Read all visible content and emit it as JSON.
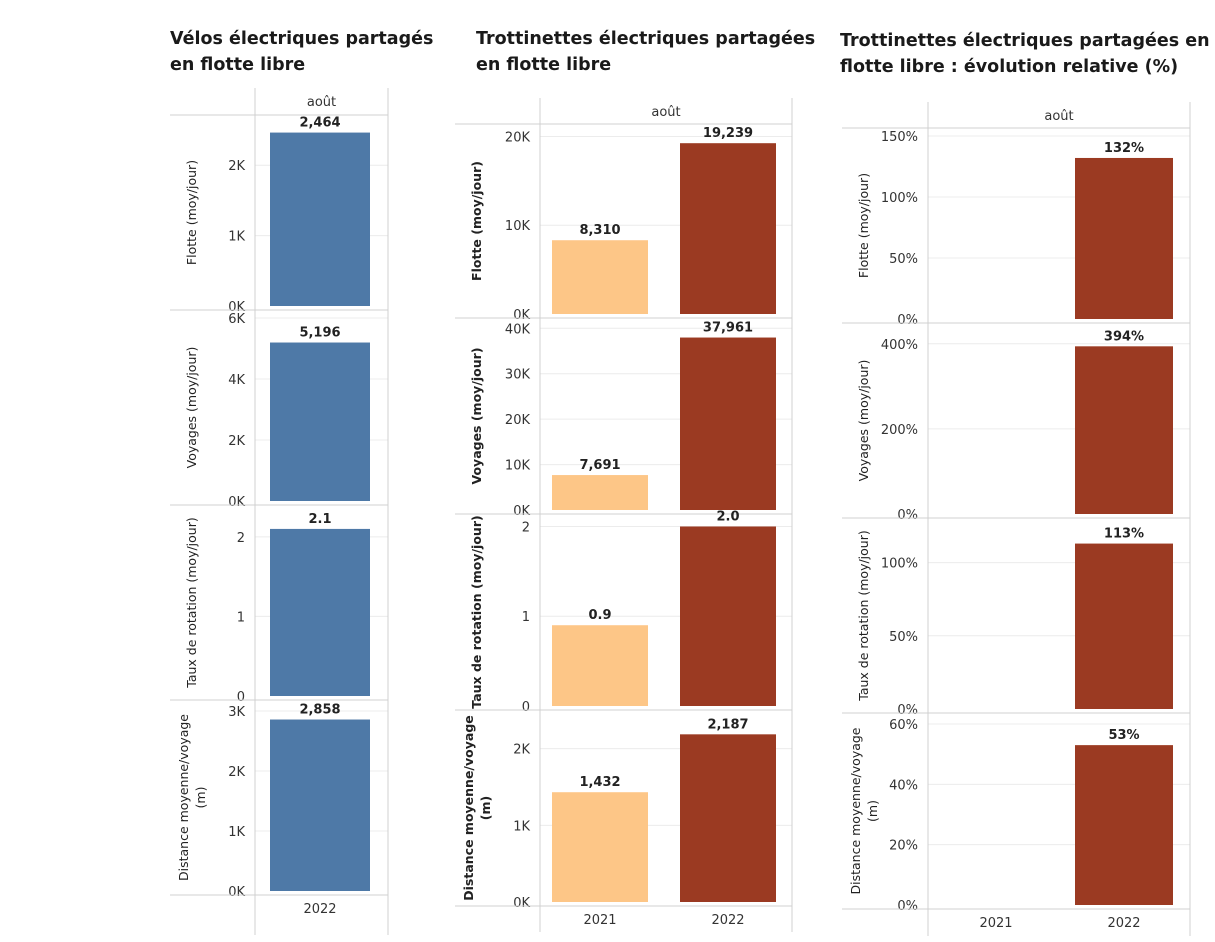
{
  "colors": {
    "velo": "#4e79a7",
    "y2021": "#fdc687",
    "y2022": "#9b3a22",
    "grid": "#ececec",
    "frame": "#d0d0d0"
  },
  "chart_data": [
    {
      "type": "bar",
      "title": "Vélos électriques partagés\nen flotte libre",
      "header": "août",
      "categories": [
        "2022"
      ],
      "panels": [
        {
          "row_label": "Flotte (moy/jour)",
          "ylim": [
            0,
            2600
          ],
          "ticks": [
            0,
            1000,
            2000
          ],
          "tick_labels": [
            "0K",
            "1K",
            "2K"
          ],
          "series": [
            {
              "name": "2022",
              "values": [
                2464
              ]
            }
          ],
          "data_labels": [
            "2,464"
          ]
        },
        {
          "row_label": "Voyages (moy/jour)",
          "ylim": [
            0,
            6000
          ],
          "ticks": [
            0,
            2000,
            4000,
            6000
          ],
          "tick_labels": [
            "0K",
            "2K",
            "4K",
            "6K"
          ],
          "series": [
            {
              "name": "2022",
              "values": [
                5196
              ]
            }
          ],
          "data_labels": [
            "5,196"
          ]
        },
        {
          "row_label": "Taux de rotation (moy/jour)",
          "ylim": [
            0,
            2.3
          ],
          "ticks": [
            0,
            1,
            2
          ],
          "tick_labels": [
            "0",
            "1",
            "2"
          ],
          "series": [
            {
              "name": "2022",
              "values": [
                2.1
              ]
            }
          ],
          "data_labels": [
            "2.1"
          ]
        },
        {
          "row_label": "Distance moyenne/voyage\n(m)",
          "ylim": [
            0,
            3050
          ],
          "ticks": [
            0,
            1000,
            2000,
            3000
          ],
          "tick_labels": [
            "0K",
            "1K",
            "2K",
            "3K"
          ],
          "series": [
            {
              "name": "2022",
              "values": [
                2858
              ]
            }
          ],
          "data_labels": [
            "2,858"
          ]
        }
      ]
    },
    {
      "type": "bar",
      "title": "Trottinettes électriques partagées\nen flotte libre",
      "header": "août",
      "categories": [
        "2021",
        "2022"
      ],
      "panels": [
        {
          "row_label": "Flotte (moy/jour)",
          "ylim": [
            0,
            20500
          ],
          "ticks": [
            0,
            10000,
            20000
          ],
          "tick_labels": [
            "0K",
            "10K",
            "20K"
          ],
          "series": [
            {
              "name": "2021",
              "values": [
                8310
              ]
            },
            {
              "name": "2022",
              "values": [
                19239
              ]
            }
          ],
          "data_labels": [
            "8,310",
            "19,239"
          ]
        },
        {
          "row_label": "Voyages (moy/jour)",
          "ylim": [
            0,
            40500
          ],
          "ticks": [
            0,
            10000,
            20000,
            30000,
            40000
          ],
          "tick_labels": [
            "0K",
            "10K",
            "20K",
            "30K",
            "40K"
          ],
          "series": [
            {
              "name": "2021",
              "values": [
                7691
              ]
            },
            {
              "name": "2022",
              "values": [
                37961
              ]
            }
          ],
          "data_labels": [
            "7,691",
            "37,961"
          ]
        },
        {
          "row_label": "Taux de rotation (moy/jour)",
          "ylim": [
            0,
            2.05
          ],
          "ticks": [
            0,
            1,
            2
          ],
          "tick_labels": [
            "0",
            "1",
            "2"
          ],
          "series": [
            {
              "name": "2021",
              "values": [
                0.9
              ]
            },
            {
              "name": "2022",
              "values": [
                2.0
              ]
            }
          ],
          "data_labels": [
            "0.9",
            "2.0"
          ]
        },
        {
          "row_label": "Distance moyenne/voyage\n(m)",
          "ylim": [
            0,
            2400
          ],
          "ticks": [
            0,
            1000,
            2000
          ],
          "tick_labels": [
            "0K",
            "1K",
            "2K"
          ],
          "series": [
            {
              "name": "2021",
              "values": [
                1432
              ]
            },
            {
              "name": "2022",
              "values": [
                2187
              ]
            }
          ],
          "data_labels": [
            "1,432",
            "2,187"
          ]
        }
      ]
    },
    {
      "type": "bar",
      "title": "Trottinettes électriques partagées en\nflotte libre : évolution relative (%)",
      "header": "août",
      "categories": [
        "2021",
        "2022"
      ],
      "panels": [
        {
          "row_label": "Flotte (moy/jour)",
          "ylim": [
            0,
            150
          ],
          "ticks": [
            0,
            50,
            100,
            150
          ],
          "tick_labels": [
            "0%",
            "50%",
            "100%",
            "150%"
          ],
          "series": [
            {
              "name": "2022",
              "values": [
                null,
                132
              ]
            }
          ],
          "data_labels": [
            "",
            "132%"
          ]
        },
        {
          "row_label": "Voyages (moy/jour)",
          "ylim": [
            0,
            430
          ],
          "ticks": [
            0,
            200,
            400
          ],
          "tick_labels": [
            "0%",
            "200%",
            "400%"
          ],
          "series": [
            {
              "name": "2022",
              "values": [
                null,
                394
              ]
            }
          ],
          "data_labels": [
            "",
            "394%"
          ]
        },
        {
          "row_label": "Taux de rotation (moy/jour)",
          "ylim": [
            0,
            125
          ],
          "ticks": [
            0,
            50,
            100
          ],
          "tick_labels": [
            "0%",
            "50%",
            "100%"
          ],
          "series": [
            {
              "name": "2022",
              "values": [
                null,
                113
              ]
            }
          ],
          "data_labels": [
            "",
            "113%"
          ]
        },
        {
          "row_label": "Distance moyenne/voyage\n(m)",
          "ylim": [
            0,
            61
          ],
          "ticks": [
            0,
            20,
            40,
            60
          ],
          "tick_labels": [
            "0%",
            "20%",
            "40%",
            "60%"
          ],
          "series": [
            {
              "name": "2022",
              "values": [
                null,
                53
              ]
            }
          ],
          "data_labels": [
            "",
            "53%"
          ]
        }
      ]
    }
  ]
}
